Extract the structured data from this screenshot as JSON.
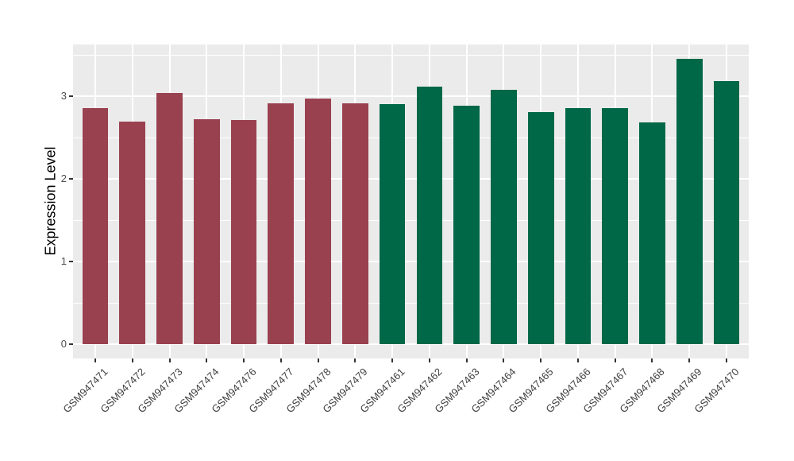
{
  "chart_data": {
    "type": "bar",
    "title": "",
    "xlabel": "",
    "ylabel": "Expression Level",
    "yticks": [
      0,
      1,
      2,
      3
    ],
    "ylim": [
      -0.17,
      3.63
    ],
    "grid": true,
    "legend_position": "none",
    "panel_bg": "#EBEBEB",
    "grid_color": "#FFFFFF",
    "tick_color": "#333333",
    "colors": {
      "group1": "#9A4150",
      "group2": "#006847"
    },
    "bar_width_frac": 0.7,
    "categories": [
      "GSM947471",
      "GSM947472",
      "GSM947473",
      "GSM947474",
      "GSM947476",
      "GSM947477",
      "GSM947478",
      "GSM947479",
      "GSM947461",
      "GSM947462",
      "GSM947463",
      "GSM947464",
      "GSM947465",
      "GSM947466",
      "GSM947467",
      "GSM947468",
      "GSM947469",
      "GSM947470"
    ],
    "bars": [
      {
        "label": "GSM947471",
        "value": 2.86,
        "group": "group1"
      },
      {
        "label": "GSM947472",
        "value": 2.7,
        "group": "group1"
      },
      {
        "label": "GSM947473",
        "value": 3.04,
        "group": "group1"
      },
      {
        "label": "GSM947474",
        "value": 2.73,
        "group": "group1"
      },
      {
        "label": "GSM947476",
        "value": 2.72,
        "group": "group1"
      },
      {
        "label": "GSM947477",
        "value": 2.92,
        "group": "group1"
      },
      {
        "label": "GSM947478",
        "value": 2.98,
        "group": "group1"
      },
      {
        "label": "GSM947479",
        "value": 2.92,
        "group": "group1"
      },
      {
        "label": "GSM947461",
        "value": 2.91,
        "group": "group2"
      },
      {
        "label": "GSM947462",
        "value": 3.12,
        "group": "group2"
      },
      {
        "label": "GSM947463",
        "value": 2.89,
        "group": "group2"
      },
      {
        "label": "GSM947464",
        "value": 3.08,
        "group": "group2"
      },
      {
        "label": "GSM947465",
        "value": 2.81,
        "group": "group2"
      },
      {
        "label": "GSM947466",
        "value": 2.86,
        "group": "group2"
      },
      {
        "label": "GSM947467",
        "value": 2.86,
        "group": "group2"
      },
      {
        "label": "GSM947468",
        "value": 2.69,
        "group": "group2"
      },
      {
        "label": "GSM947469",
        "value": 3.46,
        "group": "group2"
      },
      {
        "label": "GSM947470",
        "value": 3.19,
        "group": "group2"
      }
    ]
  }
}
